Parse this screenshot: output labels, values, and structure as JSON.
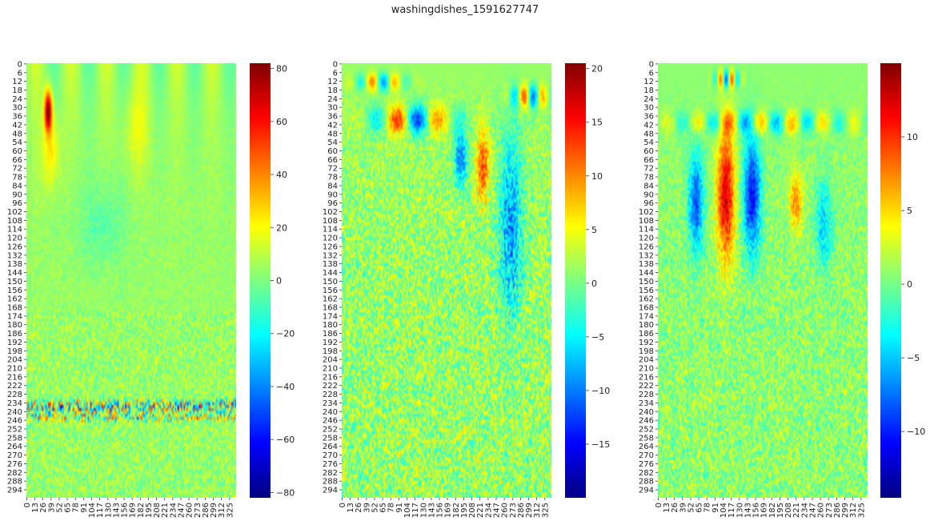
{
  "figure": {
    "title": "washingdishes_1591627747"
  },
  "colormap": {
    "name": "jet",
    "stops": [
      "#00007f",
      "#0000ff",
      "#007fff",
      "#00ffff",
      "#7fff7f",
      "#ffff00",
      "#ff7f00",
      "#ff0000",
      "#7f0000"
    ]
  },
  "chart_data": [
    {
      "type": "heatmap",
      "title": "",
      "xlabel": "",
      "ylabel": "",
      "x_tick_labels": [
        "0",
        "13",
        "26",
        "39",
        "52",
        "65",
        "78",
        "91",
        "104",
        "117",
        "130",
        "143",
        "156",
        "169",
        "182",
        "195",
        "208",
        "221",
        "234",
        "247",
        "260",
        "273",
        "286",
        "299",
        "312",
        "325"
      ],
      "y_tick_labels": [
        "0",
        "6",
        "12",
        "18",
        "24",
        "30",
        "36",
        "42",
        "48",
        "54",
        "60",
        "66",
        "72",
        "78",
        "84",
        "90",
        "96",
        "102",
        "108",
        "114",
        "120",
        "126",
        "132",
        "138",
        "144",
        "150",
        "156",
        "162",
        "168",
        "174",
        "180",
        "186",
        "192",
        "198",
        "204",
        "210",
        "216",
        "222",
        "228",
        "234",
        "240",
        "246",
        "252",
        "258",
        "264",
        "270",
        "276",
        "282",
        "288",
        "294"
      ],
      "n_cols": 336,
      "n_rows": 300,
      "vmin": -82,
      "vmax": 82,
      "colorbar_ticks": [
        {
          "value": 80,
          "label": "80"
        },
        {
          "value": 60,
          "label": "60"
        },
        {
          "value": 40,
          "label": "40"
        },
        {
          "value": 20,
          "label": "20"
        },
        {
          "value": 0,
          "label": "0"
        },
        {
          "value": -20,
          "label": "−20"
        },
        {
          "value": -40,
          "label": "−40"
        },
        {
          "value": -60,
          "label": "−60"
        },
        {
          "value": -80,
          "label": "−80"
        }
      ]
    },
    {
      "type": "heatmap",
      "title": "",
      "xlabel": "",
      "ylabel": "",
      "x_tick_labels": [
        "0",
        "13",
        "26",
        "39",
        "52",
        "65",
        "78",
        "91",
        "104",
        "117",
        "130",
        "143",
        "156",
        "169",
        "182",
        "195",
        "208",
        "221",
        "234",
        "247",
        "260",
        "273",
        "286",
        "299",
        "312",
        "325"
      ],
      "y_tick_labels": [
        "0",
        "6",
        "12",
        "18",
        "24",
        "30",
        "36",
        "42",
        "48",
        "54",
        "60",
        "66",
        "72",
        "78",
        "84",
        "90",
        "96",
        "102",
        "108",
        "114",
        "120",
        "126",
        "132",
        "138",
        "144",
        "150",
        "156",
        "162",
        "168",
        "174",
        "180",
        "186",
        "192",
        "198",
        "204",
        "210",
        "216",
        "222",
        "228",
        "234",
        "240",
        "246",
        "252",
        "258",
        "264",
        "270",
        "276",
        "282",
        "288",
        "294"
      ],
      "n_cols": 336,
      "n_rows": 300,
      "vmin": -20,
      "vmax": 20.5,
      "colorbar_ticks": [
        {
          "value": 20,
          "label": "20"
        },
        {
          "value": 15,
          "label": "15"
        },
        {
          "value": 10,
          "label": "10"
        },
        {
          "value": 5,
          "label": "5"
        },
        {
          "value": 0,
          "label": "0"
        },
        {
          "value": -5,
          "label": "−5"
        },
        {
          "value": -10,
          "label": "−10"
        },
        {
          "value": -15,
          "label": "−15"
        }
      ]
    },
    {
      "type": "heatmap",
      "title": "",
      "xlabel": "",
      "ylabel": "",
      "x_tick_labels": [
        "0",
        "13",
        "26",
        "39",
        "52",
        "65",
        "78",
        "91",
        "104",
        "117",
        "130",
        "143",
        "156",
        "169",
        "182",
        "195",
        "208",
        "221",
        "234",
        "247",
        "260",
        "273",
        "286",
        "299",
        "312",
        "325"
      ],
      "y_tick_labels": [
        "0",
        "6",
        "12",
        "18",
        "24",
        "30",
        "36",
        "42",
        "48",
        "54",
        "60",
        "66",
        "72",
        "78",
        "84",
        "90",
        "96",
        "102",
        "108",
        "114",
        "120",
        "126",
        "132",
        "138",
        "144",
        "150",
        "156",
        "162",
        "168",
        "174",
        "180",
        "186",
        "192",
        "198",
        "204",
        "210",
        "216",
        "222",
        "228",
        "234",
        "240",
        "246",
        "252",
        "258",
        "264",
        "270",
        "276",
        "282",
        "288",
        "294"
      ],
      "n_cols": 336,
      "n_rows": 300,
      "vmin": -14.5,
      "vmax": 15,
      "colorbar_ticks": [
        {
          "value": 10,
          "label": "10"
        },
        {
          "value": 5,
          "label": "5"
        },
        {
          "value": 0,
          "label": "0"
        },
        {
          "value": -5,
          "label": "−5"
        },
        {
          "value": -10,
          "label": "−10"
        }
      ]
    }
  ]
}
